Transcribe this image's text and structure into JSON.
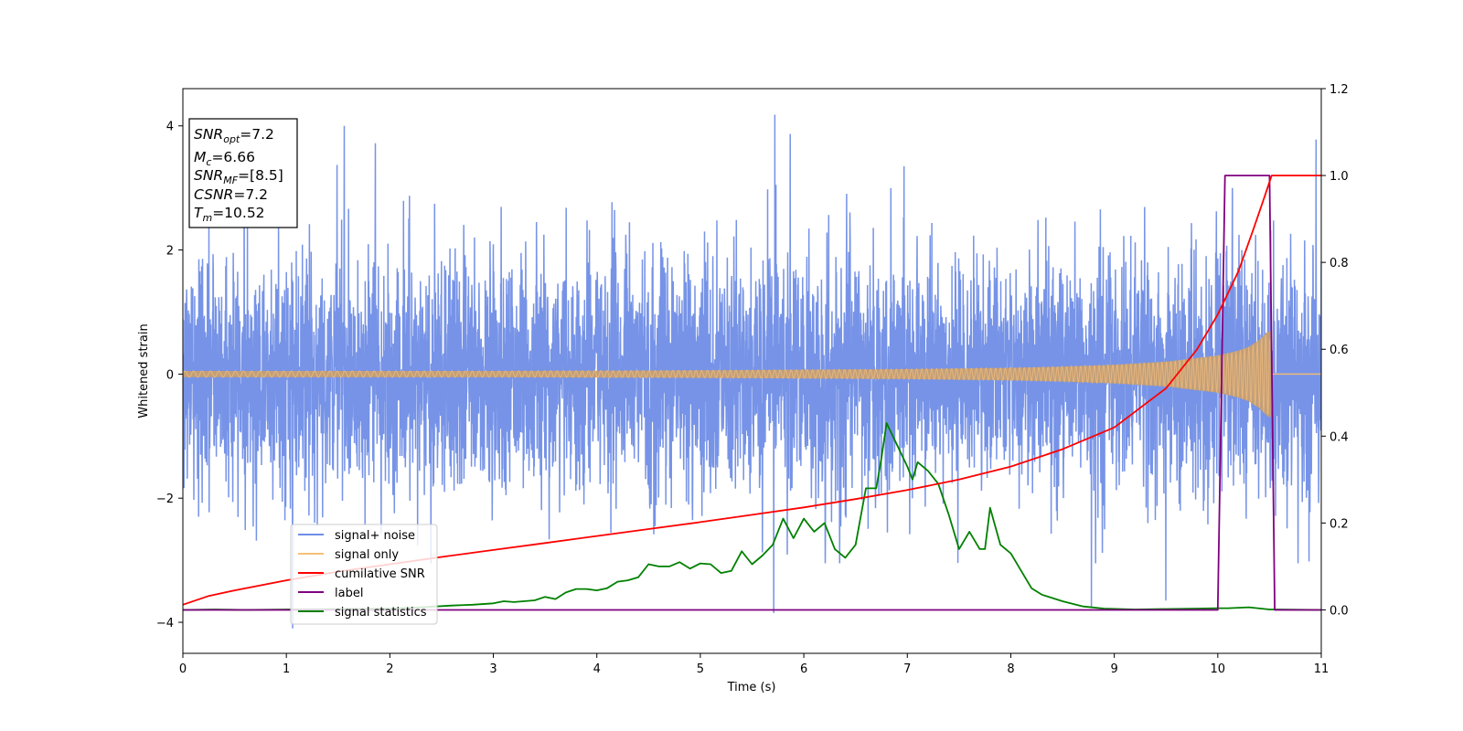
{
  "chart_data": {
    "type": "line",
    "title": "",
    "xlabel": "Time (s)",
    "ylabel": "Whitened strain",
    "ylabel_right": "",
    "xlim": [
      0,
      11
    ],
    "ylim": [
      -4.5,
      4.6
    ],
    "ylim_right": [
      -0.1,
      1.2
    ],
    "x_ticks": [
      0,
      1,
      2,
      3,
      4,
      5,
      6,
      7,
      8,
      9,
      10,
      11
    ],
    "y_ticks": [
      -4,
      -2,
      0,
      2,
      4
    ],
    "y_ticks_right": [
      0.0,
      0.2,
      0.4,
      0.6,
      0.8,
      1.0,
      1.2
    ],
    "grid": false,
    "legend_position": "lower-left",
    "annotation": {
      "snr_opt": {
        "base": "SNR",
        "sub": "opt",
        "value": "=7.2"
      },
      "mc": {
        "base": "M",
        "sub": "c",
        "value": "=6.66"
      },
      "snr_mf": {
        "base": "SNR",
        "sub": "MF",
        "value": "=[8.5]"
      },
      "csnr": {
        "base": "CSNR",
        "value": "=7.2"
      },
      "tm": {
        "base": "T",
        "sub": "m",
        "value": "=10.52"
      }
    },
    "series": [
      {
        "name": "signal+ noise",
        "axis": "left",
        "color": "#6f8de6",
        "kind": "noise",
        "x_range": [
          0,
          11
        ],
        "std": 1.0,
        "peak_values": [
          [
            1.56,
            4.0
          ],
          [
            1.49,
            3.37
          ],
          [
            1.86,
            3.72
          ],
          [
            5.72,
            4.18
          ],
          [
            5.87,
            3.87
          ],
          [
            6.97,
            3.35
          ],
          [
            10.95,
            3.78
          ],
          [
            1.06,
            -4.1
          ],
          [
            5.71,
            -3.85
          ],
          [
            8.78,
            -3.75
          ],
          [
            9.5,
            -3.65
          ]
        ]
      },
      {
        "name": "signal only",
        "axis": "left",
        "color": "#c59f73",
        "kind": "chirp",
        "envelope": [
          [
            0,
            0.05
          ],
          [
            1,
            0.05
          ],
          [
            2,
            0.05
          ],
          [
            3,
            0.05
          ],
          [
            4,
            0.055
          ],
          [
            5,
            0.06
          ],
          [
            6,
            0.07
          ],
          [
            7,
            0.08
          ],
          [
            7.5,
            0.09
          ],
          [
            8,
            0.1
          ],
          [
            8.5,
            0.12
          ],
          [
            9,
            0.15
          ],
          [
            9.5,
            0.2
          ],
          [
            10,
            0.3
          ],
          [
            10.2,
            0.38
          ],
          [
            10.3,
            0.44
          ],
          [
            10.4,
            0.55
          ],
          [
            10.48,
            0.68
          ],
          [
            10.52,
            0.7
          ],
          [
            10.53,
            0.0
          ],
          [
            11,
            0.0
          ]
        ]
      },
      {
        "name": "cumilative SNR",
        "axis": "right",
        "color": "#ff0000",
        "x": [
          0,
          0.25,
          0.5,
          1,
          1.5,
          2,
          2.5,
          3,
          3.5,
          4,
          4.5,
          5,
          5.5,
          6,
          6.5,
          7,
          7.5,
          8,
          8.5,
          9,
          9.5,
          9.8,
          10,
          10.2,
          10.35,
          10.45,
          10.52,
          11
        ],
        "values": [
          0.012,
          0.032,
          0.045,
          0.068,
          0.088,
          0.105,
          0.122,
          0.138,
          0.154,
          0.17,
          0.186,
          0.202,
          0.219,
          0.236,
          0.255,
          0.276,
          0.3,
          0.33,
          0.37,
          0.42,
          0.51,
          0.6,
          0.68,
          0.78,
          0.88,
          0.95,
          1.0,
          1.0
        ]
      },
      {
        "name": "label",
        "axis": "right",
        "color": "#800080",
        "x": [
          0,
          10.0,
          10.07,
          10.5,
          10.55,
          11
        ],
        "values": [
          0,
          0,
          1,
          1,
          0,
          0
        ]
      },
      {
        "name": "signal statistics",
        "axis": "right",
        "color": "#008000",
        "x": [
          0,
          0.3,
          0.6,
          1.0,
          1.5,
          2.0,
          2.3,
          2.6,
          2.8,
          3.0,
          3.1,
          3.2,
          3.4,
          3.5,
          3.6,
          3.7,
          3.8,
          3.9,
          4.0,
          4.1,
          4.2,
          4.3,
          4.4,
          4.5,
          4.6,
          4.7,
          4.8,
          4.9,
          5.0,
          5.1,
          5.2,
          5.3,
          5.4,
          5.5,
          5.6,
          5.7,
          5.8,
          5.9,
          6.0,
          6.1,
          6.2,
          6.25,
          6.3,
          6.4,
          6.5,
          6.6,
          6.7,
          6.75,
          6.8,
          6.9,
          7.0,
          7.05,
          7.1,
          7.2,
          7.3,
          7.4,
          7.5,
          7.6,
          7.7,
          7.75,
          7.8,
          7.9,
          8.0,
          8.1,
          8.2,
          8.3,
          8.5,
          8.7,
          8.9,
          9.2,
          9.5,
          9.8,
          10.0,
          10.1,
          10.3,
          10.5,
          11
        ],
        "values": [
          0.0,
          0.001,
          0.0,
          0.001,
          0.002,
          0.003,
          0.006,
          0.01,
          0.012,
          0.015,
          0.02,
          0.018,
          0.022,
          0.03,
          0.025,
          0.04,
          0.048,
          0.048,
          0.045,
          0.05,
          0.065,
          0.068,
          0.075,
          0.105,
          0.1,
          0.1,
          0.11,
          0.095,
          0.107,
          0.105,
          0.085,
          0.09,
          0.135,
          0.105,
          0.125,
          0.15,
          0.21,
          0.165,
          0.21,
          0.18,
          0.2,
          0.17,
          0.14,
          0.12,
          0.15,
          0.28,
          0.28,
          0.35,
          0.43,
          0.38,
          0.33,
          0.3,
          0.34,
          0.32,
          0.29,
          0.22,
          0.14,
          0.18,
          0.14,
          0.14,
          0.235,
          0.15,
          0.13,
          0.09,
          0.05,
          0.035,
          0.02,
          0.008,
          0.003,
          0.001,
          0.002,
          0.003,
          0.004,
          0.004,
          0.006,
          0.001,
          0.0
        ]
      }
    ]
  }
}
